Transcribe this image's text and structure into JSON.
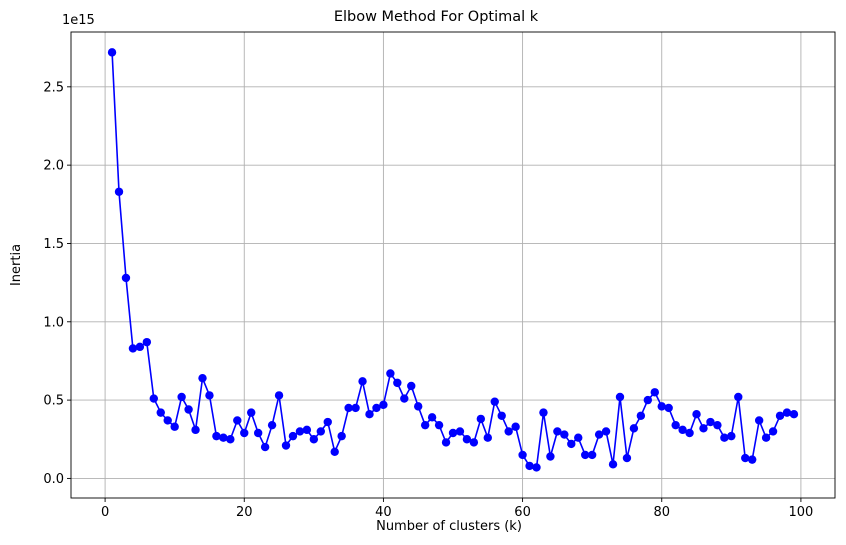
{
  "chart_data": {
    "type": "line",
    "title": "Elbow Method For Optimal k",
    "xlabel": "Number of clusters (k)",
    "ylabel": "Inertia",
    "y_offset_label": "1e15",
    "xlim": [
      -4.9,
      104.9
    ],
    "ylim": [
      -0.125,
      2.85
    ],
    "xticks": [
      0,
      20,
      40,
      60,
      80,
      100
    ],
    "xtick_labels": [
      "0",
      "20",
      "40",
      "60",
      "80",
      "100"
    ],
    "yticks": [
      0.0,
      0.5,
      1.0,
      1.5,
      2.0,
      2.5
    ],
    "ytick_labels": [
      "0.0",
      "0.5",
      "1.0",
      "1.5",
      "2.0",
      "2.5"
    ],
    "grid": true,
    "color": "#0000ff",
    "marker": "circle",
    "series": [
      {
        "x": [
          1,
          2,
          3,
          4,
          5,
          6,
          7,
          8,
          9,
          10,
          11,
          12,
          13,
          14,
          15,
          16,
          17,
          18,
          19,
          20,
          21,
          22,
          23,
          24,
          25,
          26,
          27,
          28,
          29,
          30,
          31,
          32,
          33,
          34,
          35,
          36,
          37,
          38,
          39,
          40,
          41,
          42,
          43,
          44,
          45,
          46,
          47,
          48,
          49,
          50,
          51,
          52,
          53,
          54,
          55,
          56,
          57,
          58,
          59,
          60,
          61,
          62,
          63,
          64,
          65,
          66,
          67,
          68,
          69,
          70,
          71,
          72,
          73,
          74,
          75,
          76,
          77,
          78,
          79,
          80,
          81,
          82,
          83,
          84,
          85,
          86,
          87,
          88,
          89,
          90,
          91,
          92,
          93,
          94,
          95,
          96,
          97,
          98,
          99
        ],
        "values": [
          2.72,
          1.83,
          1.28,
          0.83,
          0.84,
          0.87,
          0.51,
          0.42,
          0.37,
          0.33,
          0.52,
          0.44,
          0.31,
          0.64,
          0.53,
          0.27,
          0.26,
          0.25,
          0.37,
          0.29,
          0.42,
          0.29,
          0.2,
          0.34,
          0.53,
          0.21,
          0.27,
          0.3,
          0.31,
          0.25,
          0.3,
          0.36,
          0.17,
          0.27,
          0.45,
          0.45,
          0.62,
          0.41,
          0.45,
          0.47,
          0.67,
          0.61,
          0.51,
          0.59,
          0.46,
          0.34,
          0.39,
          0.34,
          0.23,
          0.29,
          0.3,
          0.25,
          0.23,
          0.38,
          0.26,
          0.49,
          0.4,
          0.3,
          0.33,
          0.15,
          0.08,
          0.07,
          0.42,
          0.14,
          0.3,
          0.28,
          0.22,
          0.26,
          0.15,
          0.15,
          0.28,
          0.3,
          0.09,
          0.52,
          0.13,
          0.32,
          0.4,
          0.5,
          0.55,
          0.46,
          0.45,
          0.34,
          0.31,
          0.29,
          0.41,
          0.32,
          0.36,
          0.34,
          0.26,
          0.27,
          0.52,
          0.13,
          0.12,
          0.37,
          0.26,
          0.3,
          0.4,
          0.42,
          0.41
        ]
      }
    ]
  }
}
